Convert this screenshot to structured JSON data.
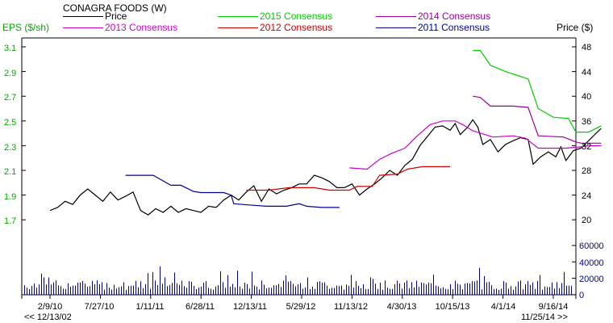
{
  "chart_data": {
    "type": "line",
    "title": "CONAGRA FOODS (W)",
    "left_axis_label": "EPS ($/sh)",
    "right_axis_label": "Price ($)",
    "eps_ylim": [
      1.58,
      3.2
    ],
    "eps_ticks": [
      "3.1",
      "2.9",
      "2.7",
      "2.5",
      "2.3",
      "2.1",
      "1.9",
      "1.7"
    ],
    "price_ticks": [
      "48",
      "44",
      "40",
      "36",
      "32",
      "28",
      "24",
      "20"
    ],
    "volume_ticks": [
      "60000",
      "40000",
      "20000",
      "0"
    ],
    "x_labels": [
      "2/9/10",
      "7/27/10",
      "1/11/11",
      "6/28/11",
      "12/13/11",
      "5/29/12",
      "11/13/12",
      "4/30/13",
      "10/15/13",
      "4/1/14",
      "9/16/14"
    ],
    "nav": {
      "back": "<< 12/13/02",
      "forward": "11/25/14 >>"
    },
    "colors": {
      "price": "#000000",
      "c2015": "#00cc00",
      "c2014": "#990099",
      "c2013": "#cc00cc",
      "c2012": "#cc0000",
      "c2011": "#000099",
      "eps_axis": "#00aa00",
      "volume_axis": "#000099"
    },
    "series": [
      {
        "name": "Price",
        "axis": "price",
        "color": "#000000",
        "points": [
          [
            0,
            21.5
          ],
          [
            0.15,
            22
          ],
          [
            0.3,
            23
          ],
          [
            0.45,
            22.5
          ],
          [
            0.6,
            24
          ],
          [
            0.75,
            25
          ],
          [
            0.9,
            24
          ],
          [
            1.05,
            23
          ],
          [
            1.2,
            24.5
          ],
          [
            1.35,
            23.2
          ],
          [
            1.5,
            23.8
          ],
          [
            1.65,
            24.5
          ],
          [
            1.8,
            21.5
          ],
          [
            1.95,
            20.8
          ],
          [
            2.1,
            21.8
          ],
          [
            2.25,
            21.2
          ],
          [
            2.4,
            22.2
          ],
          [
            2.55,
            21.2
          ],
          [
            2.7,
            21.8
          ],
          [
            2.85,
            21.5
          ],
          [
            3.0,
            21.2
          ],
          [
            3.15,
            22.2
          ],
          [
            3.3,
            22
          ],
          [
            3.45,
            23.2
          ],
          [
            3.6,
            24
          ],
          [
            3.75,
            23.2
          ],
          [
            3.9,
            24.5
          ],
          [
            4.05,
            25.5
          ],
          [
            4.2,
            23
          ],
          [
            4.35,
            25
          ],
          [
            4.5,
            24.2
          ],
          [
            4.65,
            24.8
          ],
          [
            4.8,
            25.2
          ],
          [
            4.95,
            25.8
          ],
          [
            5.1,
            25.8
          ],
          [
            5.25,
            27.2
          ],
          [
            5.4,
            26.8
          ],
          [
            5.55,
            26.2
          ],
          [
            5.7,
            25.2
          ],
          [
            5.85,
            25.2
          ],
          [
            6.0,
            25.8
          ],
          [
            6.15,
            24
          ],
          [
            6.3,
            25
          ],
          [
            6.45,
            25.8
          ],
          [
            6.6,
            26.8
          ],
          [
            6.75,
            28
          ],
          [
            6.9,
            27.2
          ],
          [
            7.05,
            28.8
          ],
          [
            7.2,
            29.8
          ],
          [
            7.35,
            32
          ],
          [
            7.5,
            33.5
          ],
          [
            7.65,
            35
          ],
          [
            7.8,
            35.2
          ],
          [
            7.95,
            34.5
          ],
          [
            8.05,
            35.6
          ],
          [
            8.15,
            33.8
          ],
          [
            8.3,
            35
          ],
          [
            8.4,
            36.2
          ],
          [
            8.5,
            35
          ],
          [
            8.6,
            32.2
          ],
          [
            8.75,
            33
          ],
          [
            8.9,
            31
          ],
          [
            9.05,
            32.2
          ],
          [
            9.2,
            32.8
          ],
          [
            9.35,
            33.3
          ],
          [
            9.5,
            33
          ],
          [
            9.6,
            29
          ],
          [
            9.75,
            30.2
          ],
          [
            9.9,
            31
          ],
          [
            10.05,
            30.2
          ],
          [
            10.15,
            31.8
          ],
          [
            10.25,
            29.6
          ],
          [
            10.4,
            31.2
          ],
          [
            10.55,
            31.6
          ],
          [
            10.7,
            32.8
          ],
          [
            10.85,
            34
          ],
          [
            10.95,
            34.8
          ]
        ]
      },
      {
        "name": "2015 Consensus",
        "axis": "eps",
        "color": "#00cc00",
        "points": [
          [
            8.4,
            3.07
          ],
          [
            8.55,
            3.07
          ],
          [
            8.75,
            2.95
          ],
          [
            9.05,
            2.9
          ],
          [
            9.5,
            2.84
          ],
          [
            9.7,
            2.6
          ],
          [
            10.0,
            2.53
          ],
          [
            10.3,
            2.52
          ],
          [
            10.45,
            2.41
          ],
          [
            10.7,
            2.41
          ],
          [
            10.95,
            2.46
          ]
        ]
      },
      {
        "name": "2014 Consensus",
        "axis": "eps",
        "color": "#990099",
        "points": [
          [
            8.4,
            2.7
          ],
          [
            8.55,
            2.69
          ],
          [
            8.75,
            2.62
          ],
          [
            9.2,
            2.62
          ],
          [
            9.5,
            2.61
          ],
          [
            9.7,
            2.38
          ],
          [
            10.2,
            2.37
          ],
          [
            10.45,
            2.33
          ],
          [
            10.55,
            2.32
          ],
          [
            10.8,
            2.32
          ],
          [
            10.95,
            2.32
          ]
        ]
      },
      {
        "name": "2013 Consensus",
        "axis": "eps",
        "color": "#cc00cc",
        "points": [
          [
            5.95,
            2.12
          ],
          [
            6.3,
            2.11
          ],
          [
            6.55,
            2.19
          ],
          [
            6.8,
            2.24
          ],
          [
            7.05,
            2.28
          ],
          [
            7.3,
            2.38
          ],
          [
            7.55,
            2.47
          ],
          [
            7.8,
            2.5
          ],
          [
            8.05,
            2.5
          ],
          [
            8.2,
            2.47
          ],
          [
            8.4,
            2.42
          ],
          [
            8.8,
            2.37
          ],
          [
            9.2,
            2.38
          ],
          [
            9.45,
            2.36
          ],
          [
            9.7,
            2.28
          ],
          [
            10.25,
            2.28
          ],
          [
            10.55,
            2.29
          ],
          [
            10.7,
            2.3
          ],
          [
            10.95,
            2.3
          ]
        ]
      },
      {
        "name": "2012 Consensus",
        "axis": "eps",
        "color": "#cc0000",
        "points": [
          [
            3.9,
            1.94
          ],
          [
            4.35,
            1.94
          ],
          [
            4.75,
            1.96
          ],
          [
            5.25,
            1.96
          ],
          [
            5.55,
            1.94
          ],
          [
            5.95,
            1.94
          ],
          [
            6.1,
            1.97
          ],
          [
            6.4,
            1.97
          ],
          [
            6.55,
            2.06
          ],
          [
            6.9,
            2.07
          ],
          [
            7.1,
            2.11
          ],
          [
            7.4,
            2.13
          ],
          [
            7.6,
            2.13
          ],
          [
            7.95,
            2.13
          ]
        ]
      },
      {
        "name": "2011 Consensus",
        "axis": "eps",
        "color": "#000099",
        "points": [
          [
            1.5,
            2.06
          ],
          [
            2.05,
            2.06
          ],
          [
            2.4,
            1.98
          ],
          [
            2.6,
            1.98
          ],
          [
            2.85,
            1.93
          ],
          [
            3.0,
            1.92
          ],
          [
            3.45,
            1.92
          ],
          [
            3.6,
            1.9
          ],
          [
            3.65,
            1.83
          ],
          [
            3.95,
            1.82
          ],
          [
            4.3,
            1.81
          ],
          [
            4.7,
            1.81
          ],
          [
            4.95,
            1.83
          ],
          [
            5.1,
            1.81
          ],
          [
            5.4,
            1.8
          ],
          [
            5.75,
            1.8
          ]
        ]
      }
    ]
  }
}
